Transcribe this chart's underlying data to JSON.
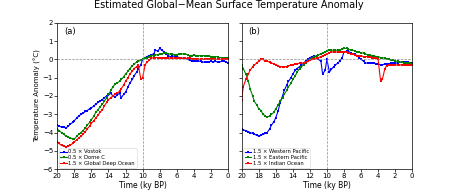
{
  "title": "Estimated Global−Mean Surface Temperature Anomaly",
  "xlabel": "Time (ky BP)",
  "ylabel": "Temperature Anomaly (°C)",
  "panel_a_label": "(a)",
  "panel_b_label": "(b)",
  "xlim": [
    20,
    0
  ],
  "ylim": [
    -6,
    2
  ],
  "xticks": [
    20,
    18,
    16,
    14,
    12,
    10,
    8,
    6,
    4,
    2,
    0
  ],
  "yticks": [
    -6,
    -5,
    -4,
    -3,
    -2,
    -1,
    0,
    1,
    2
  ],
  "vline_x": 10,
  "hline_y": 0,
  "legend_a": [
    "0.5 × Vostok",
    "0.5 × Dome C",
    "1.5 × Global Deep Ocean"
  ],
  "legend_b": [
    "1.5 × Western Pacific",
    "1.5 × Eastern Pacific",
    "1.5 × Indian Ocean"
  ],
  "panel_a": {
    "vostok_x": [
      20.0,
      19.8,
      19.5,
      19.2,
      19.0,
      18.7,
      18.5,
      18.2,
      18.0,
      17.7,
      17.5,
      17.2,
      17.0,
      16.7,
      16.5,
      16.2,
      16.0,
      15.7,
      15.5,
      15.2,
      15.0,
      14.7,
      14.5,
      14.2,
      14.0,
      13.7,
      13.5,
      13.2,
      13.0,
      12.7,
      12.5,
      12.2,
      12.0,
      11.7,
      11.5,
      11.2,
      11.0,
      10.7,
      10.5,
      10.2,
      10.0,
      9.7,
      9.5,
      9.2,
      9.0,
      8.7,
      8.5,
      8.2,
      8.0,
      7.7,
      7.5,
      7.2,
      7.0,
      6.7,
      6.5,
      6.2,
      6.0,
      5.7,
      5.5,
      5.2,
      5.0,
      4.7,
      4.5,
      4.2,
      4.0,
      3.7,
      3.5,
      3.2,
      3.0,
      2.7,
      2.5,
      2.2,
      2.0,
      1.7,
      1.5,
      1.2,
      1.0,
      0.7,
      0.5,
      0.2,
      0.0
    ],
    "vostok_y": [
      -3.6,
      -3.65,
      -3.7,
      -3.72,
      -3.75,
      -3.65,
      -3.55,
      -3.45,
      -3.35,
      -3.2,
      -3.1,
      -3.0,
      -2.95,
      -2.85,
      -2.8,
      -2.7,
      -2.65,
      -2.55,
      -2.45,
      -2.35,
      -2.3,
      -2.2,
      -2.1,
      -2.0,
      -1.95,
      -1.85,
      -2.0,
      -2.05,
      -1.95,
      -1.85,
      -2.1,
      -1.9,
      -1.8,
      -1.5,
      -1.3,
      -1.1,
      -0.9,
      -0.7,
      -0.5,
      -0.3,
      0.0,
      0.1,
      0.15,
      0.2,
      0.25,
      0.3,
      0.5,
      0.45,
      0.6,
      0.5,
      0.4,
      0.3,
      0.2,
      0.15,
      0.2,
      0.15,
      0.15,
      0.1,
      0.1,
      0.05,
      0.05,
      0.0,
      -0.05,
      -0.1,
      -0.1,
      -0.1,
      -0.1,
      -0.1,
      -0.15,
      -0.15,
      -0.15,
      -0.15,
      -0.1,
      -0.15,
      -0.1,
      -0.15,
      -0.15,
      -0.1,
      -0.1,
      -0.15,
      -0.2
    ],
    "domec_x": [
      20.0,
      19.8,
      19.5,
      19.2,
      19.0,
      18.7,
      18.5,
      18.2,
      18.0,
      17.7,
      17.5,
      17.2,
      17.0,
      16.7,
      16.5,
      16.2,
      16.0,
      15.7,
      15.5,
      15.2,
      15.0,
      14.7,
      14.5,
      14.2,
      14.0,
      13.7,
      13.5,
      13.2,
      13.0,
      12.7,
      12.5,
      12.2,
      12.0,
      11.7,
      11.5,
      11.2,
      11.0,
      10.7,
      10.5,
      10.2,
      10.0,
      9.7,
      9.5,
      9.2,
      9.0,
      8.7,
      8.5,
      8.2,
      8.0,
      7.7,
      7.5,
      7.2,
      7.0,
      6.7,
      6.5,
      6.2,
      6.0,
      5.7,
      5.5,
      5.2,
      5.0,
      4.7,
      4.5,
      4.2,
      4.0,
      3.7,
      3.5,
      3.2,
      3.0,
      2.7,
      2.5,
      2.2,
      2.0,
      1.7,
      1.5,
      1.2,
      1.0,
      0.7,
      0.5,
      0.2,
      0.0
    ],
    "domec_y": [
      -3.8,
      -3.9,
      -4.0,
      -4.1,
      -4.2,
      -4.25,
      -4.3,
      -4.35,
      -4.35,
      -4.2,
      -4.1,
      -4.0,
      -3.9,
      -3.75,
      -3.6,
      -3.45,
      -3.3,
      -3.1,
      -2.9,
      -2.75,
      -2.6,
      -2.45,
      -2.3,
      -2.1,
      -1.9,
      -1.7,
      -1.5,
      -1.35,
      -1.3,
      -1.2,
      -1.1,
      -0.95,
      -0.8,
      -0.65,
      -0.5,
      -0.35,
      -0.25,
      -0.15,
      -0.1,
      -0.05,
      0.0,
      0.05,
      0.1,
      0.15,
      0.2,
      0.2,
      0.25,
      0.25,
      0.3,
      0.3,
      0.35,
      0.35,
      0.3,
      0.3,
      0.3,
      0.25,
      0.25,
      0.3,
      0.3,
      0.3,
      0.3,
      0.25,
      0.2,
      0.2,
      0.25,
      0.2,
      0.2,
      0.2,
      0.2,
      0.2,
      0.2,
      0.2,
      0.15,
      0.15,
      0.15,
      0.15,
      0.1,
      0.1,
      0.1,
      0.1,
      0.1
    ],
    "ocean_x": [
      20.0,
      19.8,
      19.5,
      19.2,
      19.0,
      18.7,
      18.5,
      18.2,
      18.0,
      17.7,
      17.5,
      17.2,
      17.0,
      16.7,
      16.5,
      16.2,
      16.0,
      15.7,
      15.5,
      15.2,
      15.0,
      14.7,
      14.5,
      14.2,
      14.0,
      13.7,
      13.5,
      13.2,
      13.0,
      12.7,
      12.5,
      12.2,
      12.0,
      11.7,
      11.5,
      11.2,
      11.0,
      10.7,
      10.5,
      10.2,
      10.0,
      9.7,
      9.5,
      9.2,
      9.0,
      8.7,
      8.5,
      8.2,
      8.0,
      7.7,
      7.5,
      7.2,
      7.0,
      6.7,
      6.5,
      6.2,
      6.0,
      5.7,
      5.5,
      5.2,
      5.0,
      4.7,
      4.5,
      4.2,
      4.0,
      3.7,
      3.5,
      3.2,
      3.0,
      2.7,
      2.5,
      2.2,
      2.0,
      1.7,
      1.5,
      1.2,
      1.0,
      0.7,
      0.5,
      0.2,
      0.0
    ],
    "ocean_y": [
      -4.5,
      -4.6,
      -4.7,
      -4.75,
      -4.8,
      -4.75,
      -4.7,
      -4.6,
      -4.5,
      -4.4,
      -4.3,
      -4.2,
      -4.1,
      -3.95,
      -3.8,
      -3.65,
      -3.5,
      -3.35,
      -3.2,
      -3.05,
      -2.9,
      -2.75,
      -2.55,
      -2.35,
      -2.2,
      -2.1,
      -2.0,
      -1.9,
      -1.85,
      -1.75,
      -1.6,
      -1.4,
      -1.2,
      -1.0,
      -0.8,
      -0.65,
      -0.5,
      -0.4,
      -0.3,
      -1.1,
      -1.0,
      -0.3,
      -0.15,
      -0.05,
      0.05,
      0.1,
      0.1,
      0.1,
      0.1,
      0.1,
      0.1,
      0.1,
      0.1,
      0.05,
      0.05,
      0.1,
      0.05,
      0.05,
      0.05,
      0.05,
      0.05,
      0.05,
      0.05,
      0.0,
      0.0,
      0.0,
      0.0,
      0.0,
      0.0,
      0.0,
      0.0,
      0.0,
      0.0,
      0.0,
      0.0,
      0.0,
      0.0,
      0.0,
      0.0,
      0.0,
      0.0
    ]
  },
  "panel_b": {
    "wpac_x": [
      20.0,
      19.8,
      19.5,
      19.2,
      19.0,
      18.7,
      18.5,
      18.2,
      18.0,
      17.7,
      17.5,
      17.2,
      17.0,
      16.7,
      16.5,
      16.2,
      16.0,
      15.7,
      15.5,
      15.2,
      15.0,
      14.7,
      14.5,
      14.2,
      14.0,
      13.7,
      13.5,
      13.2,
      13.0,
      12.7,
      12.5,
      12.2,
      12.0,
      11.7,
      11.5,
      11.2,
      11.0,
      10.7,
      10.5,
      10.2,
      10.0,
      9.7,
      9.5,
      9.2,
      9.0,
      8.7,
      8.5,
      8.2,
      8.0,
      7.7,
      7.5,
      7.2,
      7.0,
      6.7,
      6.5,
      6.2,
      6.0,
      5.7,
      5.5,
      5.2,
      5.0,
      4.7,
      4.5,
      4.2,
      4.0,
      3.7,
      3.5,
      3.2,
      3.0,
      2.7,
      2.5,
      2.2,
      2.0,
      1.7,
      1.5,
      1.2,
      1.0,
      0.7,
      0.5,
      0.2,
      0.0
    ],
    "wpac_y": [
      -3.8,
      -3.85,
      -3.9,
      -3.95,
      -4.0,
      -4.05,
      -4.1,
      -4.15,
      -4.2,
      -4.15,
      -4.1,
      -4.05,
      -4.0,
      -3.8,
      -3.6,
      -3.4,
      -3.2,
      -2.8,
      -2.4,
      -2.0,
      -1.7,
      -1.4,
      -1.2,
      -1.0,
      -0.8,
      -0.6,
      -0.5,
      -0.4,
      -0.3,
      -0.2,
      -0.1,
      0.0,
      0.1,
      0.15,
      0.2,
      0.1,
      0.0,
      -0.1,
      -0.8,
      -0.6,
      0.0,
      -0.7,
      -0.55,
      -0.4,
      -0.3,
      -0.2,
      -0.1,
      0.1,
      0.4,
      0.45,
      0.45,
      0.35,
      0.3,
      0.3,
      0.2,
      0.1,
      0.0,
      -0.1,
      -0.2,
      -0.2,
      -0.2,
      -0.2,
      -0.2,
      -0.25,
      -0.25,
      -0.3,
      -0.3,
      -0.25,
      -0.25,
      -0.25,
      -0.2,
      -0.2,
      -0.2,
      -0.2,
      -0.15,
      -0.15,
      -0.15,
      -0.15,
      -0.15,
      -0.2,
      -0.2
    ],
    "epac_x": [
      20.0,
      19.8,
      19.5,
      19.2,
      19.0,
      18.7,
      18.5,
      18.2,
      18.0,
      17.7,
      17.5,
      17.2,
      17.0,
      16.7,
      16.5,
      16.2,
      16.0,
      15.7,
      15.5,
      15.2,
      15.0,
      14.7,
      14.5,
      14.2,
      14.0,
      13.7,
      13.5,
      13.2,
      13.0,
      12.7,
      12.5,
      12.2,
      12.0,
      11.7,
      11.5,
      11.2,
      11.0,
      10.7,
      10.5,
      10.2,
      10.0,
      9.7,
      9.5,
      9.2,
      9.0,
      8.7,
      8.5,
      8.2,
      8.0,
      7.7,
      7.5,
      7.2,
      7.0,
      6.7,
      6.5,
      6.2,
      6.0,
      5.7,
      5.5,
      5.2,
      5.0,
      4.7,
      4.5,
      4.2,
      4.0,
      3.7,
      3.5,
      3.2,
      3.0,
      2.7,
      2.5,
      2.2,
      2.0,
      1.7,
      1.5,
      1.2,
      1.0,
      0.7,
      0.5,
      0.2,
      0.0
    ],
    "epac_y": [
      -0.3,
      -0.5,
      -0.8,
      -1.2,
      -1.6,
      -2.0,
      -2.3,
      -2.5,
      -2.7,
      -2.8,
      -3.0,
      -3.1,
      -3.15,
      -3.1,
      -3.0,
      -2.9,
      -2.7,
      -2.5,
      -2.3,
      -2.1,
      -1.9,
      -1.7,
      -1.5,
      -1.3,
      -1.1,
      -0.9,
      -0.7,
      -0.5,
      -0.4,
      -0.3,
      -0.2,
      -0.1,
      0.0,
      0.1,
      0.15,
      0.2,
      0.25,
      0.3,
      0.35,
      0.4,
      0.45,
      0.5,
      0.5,
      0.5,
      0.5,
      0.5,
      0.5,
      0.55,
      0.6,
      0.6,
      0.55,
      0.5,
      0.5,
      0.45,
      0.4,
      0.4,
      0.35,
      0.35,
      0.3,
      0.25,
      0.25,
      0.2,
      0.2,
      0.15,
      0.15,
      0.1,
      0.1,
      0.05,
      0.0,
      0.0,
      -0.05,
      -0.05,
      -0.1,
      -0.1,
      -0.15,
      -0.15,
      -0.2,
      -0.2,
      -0.2,
      -0.2,
      -0.25
    ],
    "indian_x": [
      20.0,
      19.8,
      19.5,
      19.2,
      19.0,
      18.7,
      18.5,
      18.2,
      18.0,
      17.7,
      17.5,
      17.2,
      17.0,
      16.7,
      16.5,
      16.2,
      16.0,
      15.7,
      15.5,
      15.2,
      15.0,
      14.7,
      14.5,
      14.2,
      14.0,
      13.7,
      13.5,
      13.2,
      13.0,
      12.7,
      12.5,
      12.2,
      12.0,
      11.7,
      11.5,
      11.2,
      11.0,
      10.7,
      10.5,
      10.2,
      10.0,
      9.7,
      9.5,
      9.2,
      9.0,
      8.7,
      8.5,
      8.2,
      8.0,
      7.7,
      7.5,
      7.2,
      7.0,
      6.7,
      6.5,
      6.2,
      6.0,
      5.7,
      5.5,
      5.2,
      5.0,
      4.7,
      4.5,
      4.2,
      4.0,
      3.7,
      3.5,
      3.2,
      3.0,
      2.7,
      2.5,
      2.2,
      2.0,
      1.7,
      1.5,
      1.2,
      1.0,
      0.7,
      0.5,
      0.2,
      0.0
    ],
    "indian_y": [
      -2.2,
      -1.5,
      -1.1,
      -0.8,
      -0.6,
      -0.4,
      -0.3,
      -0.2,
      -0.1,
      0.0,
      0.0,
      -0.1,
      -0.1,
      -0.15,
      -0.2,
      -0.25,
      -0.3,
      -0.35,
      -0.4,
      -0.4,
      -0.4,
      -0.4,
      -0.35,
      -0.3,
      -0.3,
      -0.25,
      -0.25,
      -0.2,
      -0.2,
      -0.2,
      -0.15,
      -0.1,
      -0.05,
      0.0,
      0.0,
      0.05,
      0.1,
      0.15,
      0.2,
      0.25,
      0.3,
      0.35,
      0.4,
      0.4,
      0.4,
      0.4,
      0.4,
      0.4,
      0.4,
      0.4,
      0.35,
      0.3,
      0.3,
      0.25,
      0.2,
      0.2,
      0.2,
      0.15,
      0.15,
      0.15,
      0.15,
      0.1,
      0.1,
      0.1,
      0.0,
      -1.2,
      -1.1,
      -0.5,
      -0.35,
      -0.3,
      -0.3,
      -0.3,
      -0.3,
      -0.3,
      -0.3,
      -0.3,
      -0.3,
      -0.3,
      -0.3,
      -0.3,
      -0.3
    ]
  }
}
